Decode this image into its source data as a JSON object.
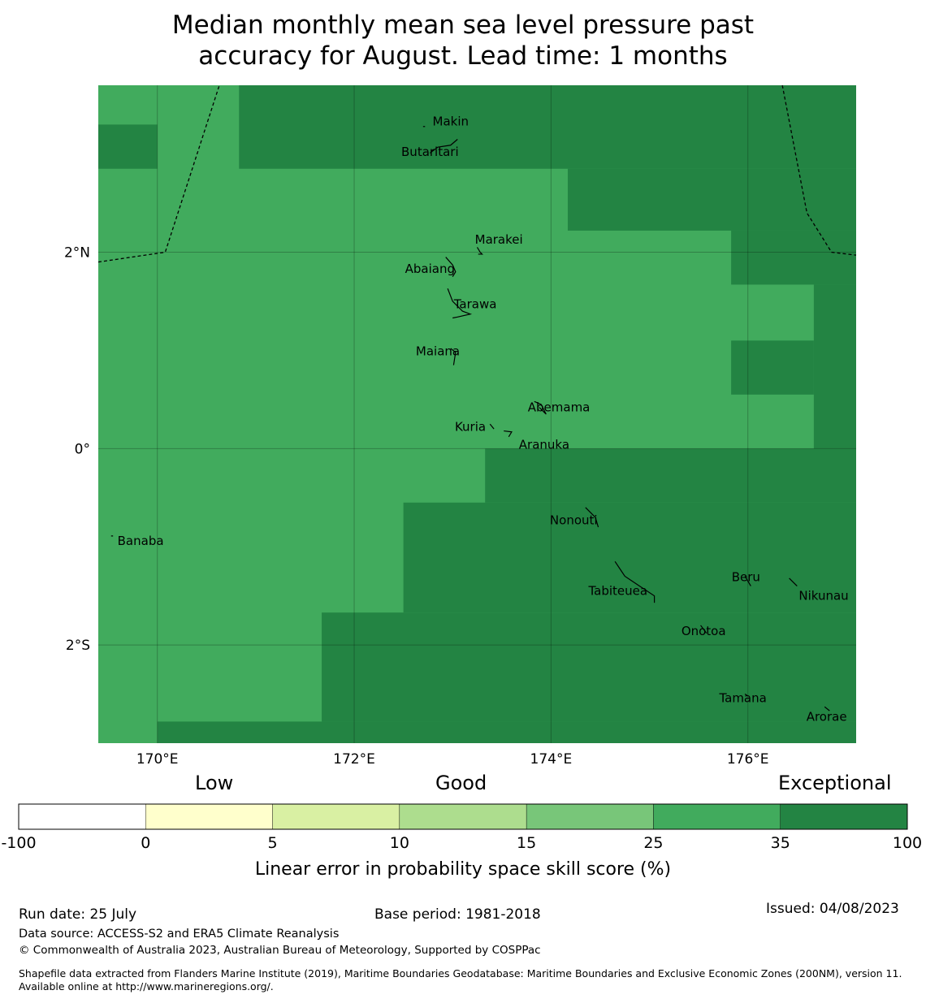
{
  "title": {
    "line1": "Median monthly mean sea level pressure past",
    "line2": "accuracy for August. Lead time: 1 months"
  },
  "map": {
    "lon_range": [
      169.4,
      177.1
    ],
    "lat_range": [
      -3.0,
      3.7
    ],
    "x_ticks": [
      {
        "value": 170,
        "label": "170°E"
      },
      {
        "value": 172,
        "label": "172°E"
      },
      {
        "value": 174,
        "label": "174°E"
      },
      {
        "value": 176,
        "label": "176°E"
      }
    ],
    "y_ticks": [
      {
        "value": 2,
        "label": "2°N"
      },
      {
        "value": 0,
        "label": "0°"
      },
      {
        "value": -2,
        "label": "2°S"
      }
    ],
    "grid": true,
    "colors": {
      "good": "#41ab5d",
      "exceptional": "#238443"
    },
    "cells_exceptional": [
      {
        "lon": [
          169.4,
          170.0
        ],
        "lat": [
          2.85,
          3.3
        ]
      },
      {
        "lon": [
          170.83,
          177.1
        ],
        "lat": [
          2.85,
          3.7
        ]
      },
      {
        "lon": [
          174.17,
          177.1
        ],
        "lat": [
          2.22,
          2.85
        ]
      },
      {
        "lon": [
          175.83,
          177.1
        ],
        "lat": [
          1.67,
          2.22
        ]
      },
      {
        "lon": [
          176.67,
          177.1
        ],
        "lat": [
          0.0,
          1.67
        ]
      },
      {
        "lon": [
          175.83,
          176.67
        ],
        "lat": [
          0.55,
          1.1
        ]
      },
      {
        "lon": [
          173.33,
          177.1
        ],
        "lat": [
          -0.55,
          0.0
        ]
      },
      {
        "lon": [
          172.5,
          177.1
        ],
        "lat": [
          -1.67,
          -0.55
        ]
      },
      {
        "lon": [
          171.67,
          177.1
        ],
        "lat": [
          -2.78,
          -1.67
        ]
      },
      {
        "lon": [
          170.0,
          177.1
        ],
        "lat": [
          -3.0,
          -2.78
        ]
      }
    ],
    "eez_lines": [
      [
        [
          169.4,
          1.9
        ],
        [
          170.08,
          2.0
        ],
        [
          170.63,
          3.7
        ]
      ],
      [
        [
          176.35,
          3.7
        ],
        [
          176.6,
          2.4
        ],
        [
          176.85,
          2.0
        ],
        [
          177.1,
          1.97
        ]
      ]
    ],
    "islands": [
      {
        "name": "Makin",
        "lon": 172.98,
        "lat": 3.33,
        "shape": [
          [
            172.7,
            3.28
          ],
          [
            172.72,
            3.28
          ]
        ]
      },
      {
        "name": "Butaritari",
        "lon": 172.77,
        "lat": 3.02,
        "shape": [
          [
            172.77,
            3.01
          ],
          [
            172.85,
            3.07
          ],
          [
            172.98,
            3.09
          ],
          [
            173.05,
            3.15
          ]
        ]
      },
      {
        "name": "Marakei",
        "lon": 173.47,
        "lat": 2.13,
        "shape": [
          [
            173.25,
            2.05
          ],
          [
            173.28,
            2.0
          ],
          [
            173.3,
            1.98
          ],
          [
            173.26,
            1.98
          ]
        ]
      },
      {
        "name": "Abaiang",
        "lon": 172.77,
        "lat": 1.83,
        "shape": [
          [
            172.93,
            1.95
          ],
          [
            173.0,
            1.87
          ],
          [
            173.03,
            1.8
          ],
          [
            173.0,
            1.75
          ]
        ]
      },
      {
        "name": "Tarawa",
        "lon": 173.23,
        "lat": 1.47,
        "shape": [
          [
            172.95,
            1.63
          ],
          [
            173.0,
            1.5
          ],
          [
            173.1,
            1.4
          ],
          [
            173.18,
            1.37
          ],
          [
            173.05,
            1.34
          ],
          [
            173.0,
            1.33
          ]
        ]
      },
      {
        "name": "Maiana",
        "lon": 172.85,
        "lat": 0.99,
        "shape": [
          [
            172.98,
            1.02
          ],
          [
            173.03,
            0.98
          ],
          [
            173.01,
            0.85
          ]
        ]
      },
      {
        "name": "Abemama",
        "lon": 174.08,
        "lat": 0.42,
        "shape": [
          [
            173.83,
            0.48
          ],
          [
            173.9,
            0.45
          ],
          [
            173.95,
            0.35
          ],
          [
            173.88,
            0.42
          ]
        ]
      },
      {
        "name": "Kuria",
        "lon": 173.18,
        "lat": 0.22,
        "shape": [
          [
            173.38,
            0.25
          ],
          [
            173.42,
            0.2
          ]
        ]
      },
      {
        "name": "Aranuka",
        "lon": 173.93,
        "lat": 0.04,
        "shape": [
          [
            173.52,
            0.18
          ],
          [
            173.6,
            0.17
          ],
          [
            173.57,
            0.12
          ]
        ]
      },
      {
        "name": "Nonouti",
        "lon": 174.23,
        "lat": -0.73,
        "shape": [
          [
            174.35,
            -0.6
          ],
          [
            174.45,
            -0.7
          ],
          [
            174.48,
            -0.8
          ]
        ]
      },
      {
        "name": "Banaba",
        "lon": 169.83,
        "lat": -0.94,
        "shape": [
          [
            169.53,
            -0.89
          ],
          [
            169.55,
            -0.89
          ]
        ]
      },
      {
        "name": "Tabiteuea",
        "lon": 174.68,
        "lat": -1.45,
        "shape": [
          [
            174.65,
            -1.15
          ],
          [
            174.75,
            -1.3
          ],
          [
            174.9,
            -1.4
          ],
          [
            175.05,
            -1.5
          ],
          [
            175.05,
            -1.57
          ]
        ]
      },
      {
        "name": "Beru",
        "lon": 175.98,
        "lat": -1.31,
        "shape": [
          [
            175.97,
            -1.3
          ],
          [
            176.03,
            -1.4
          ]
        ]
      },
      {
        "name": "Nikunau",
        "lon": 176.77,
        "lat": -1.5,
        "shape": [
          [
            176.42,
            -1.32
          ],
          [
            176.5,
            -1.4
          ]
        ]
      },
      {
        "name": "Onotoa",
        "lon": 175.55,
        "lat": -1.86,
        "shape": [
          [
            175.52,
            -1.8
          ],
          [
            175.58,
            -1.88
          ]
        ]
      },
      {
        "name": "Tamana",
        "lon": 175.95,
        "lat": -2.54,
        "shape": [
          [
            175.97,
            -2.5
          ],
          [
            176.0,
            -2.52
          ]
        ]
      },
      {
        "name": "Arorae",
        "lon": 176.8,
        "lat": -2.73,
        "shape": [
          [
            176.78,
            -2.63
          ],
          [
            176.83,
            -2.67
          ]
        ]
      }
    ]
  },
  "colorbar": {
    "boundaries": [
      "-100",
      "0",
      "5",
      "10",
      "15",
      "25",
      "35",
      "100"
    ],
    "colors": [
      "#ffffff",
      "#ffffcc",
      "#d9f0a3",
      "#addd8e",
      "#78c679",
      "#41ab5d",
      "#238443"
    ],
    "categories": [
      "Low",
      "Good",
      "Exceptional"
    ],
    "label": "Linear error in probability space skill score (%)"
  },
  "footer": {
    "run_date": "Run date: 25 July",
    "base_period": "Base period: 1981-2018",
    "issued": "Issued: 04/08/2023",
    "data_source": "Data source: ACCESS-S2 and ERA5 Climate Reanalysis",
    "copyright": "© Commonwealth of Australia 2023, Australian Bureau of Meteorology, Supported by COSPPac",
    "shapefile": "Shapefile data extracted from Flanders Marine Institute (2019), Maritime Boundaries Geodatabase: Maritime Boundaries and Exclusive Economic Zones (200NM), version 11. Available online at http://www.marineregions.org/."
  }
}
